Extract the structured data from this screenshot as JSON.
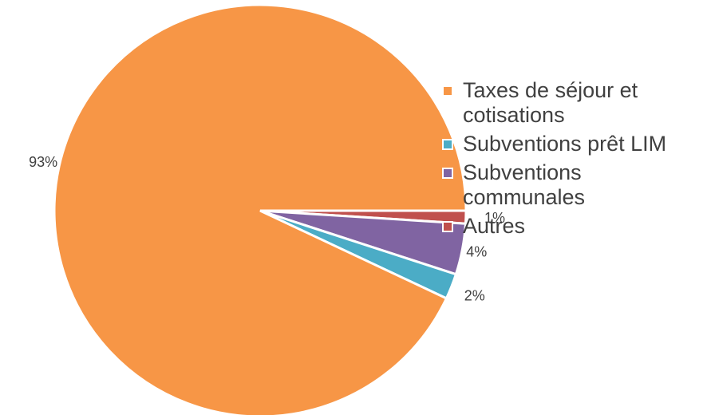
{
  "chart_data": {
    "type": "pie",
    "categories": [
      "Taxes de séjour et cotisations",
      "Subventions prêt LIM",
      "Subventions communales",
      "Autres"
    ],
    "values": [
      93,
      2,
      4,
      1
    ],
    "labels": [
      "93%",
      "2%",
      "4%",
      "1%"
    ],
    "colors": [
      "#F79646",
      "#4BACC6",
      "#8064A2",
      "#C0504D"
    ],
    "legend_position": "right"
  }
}
